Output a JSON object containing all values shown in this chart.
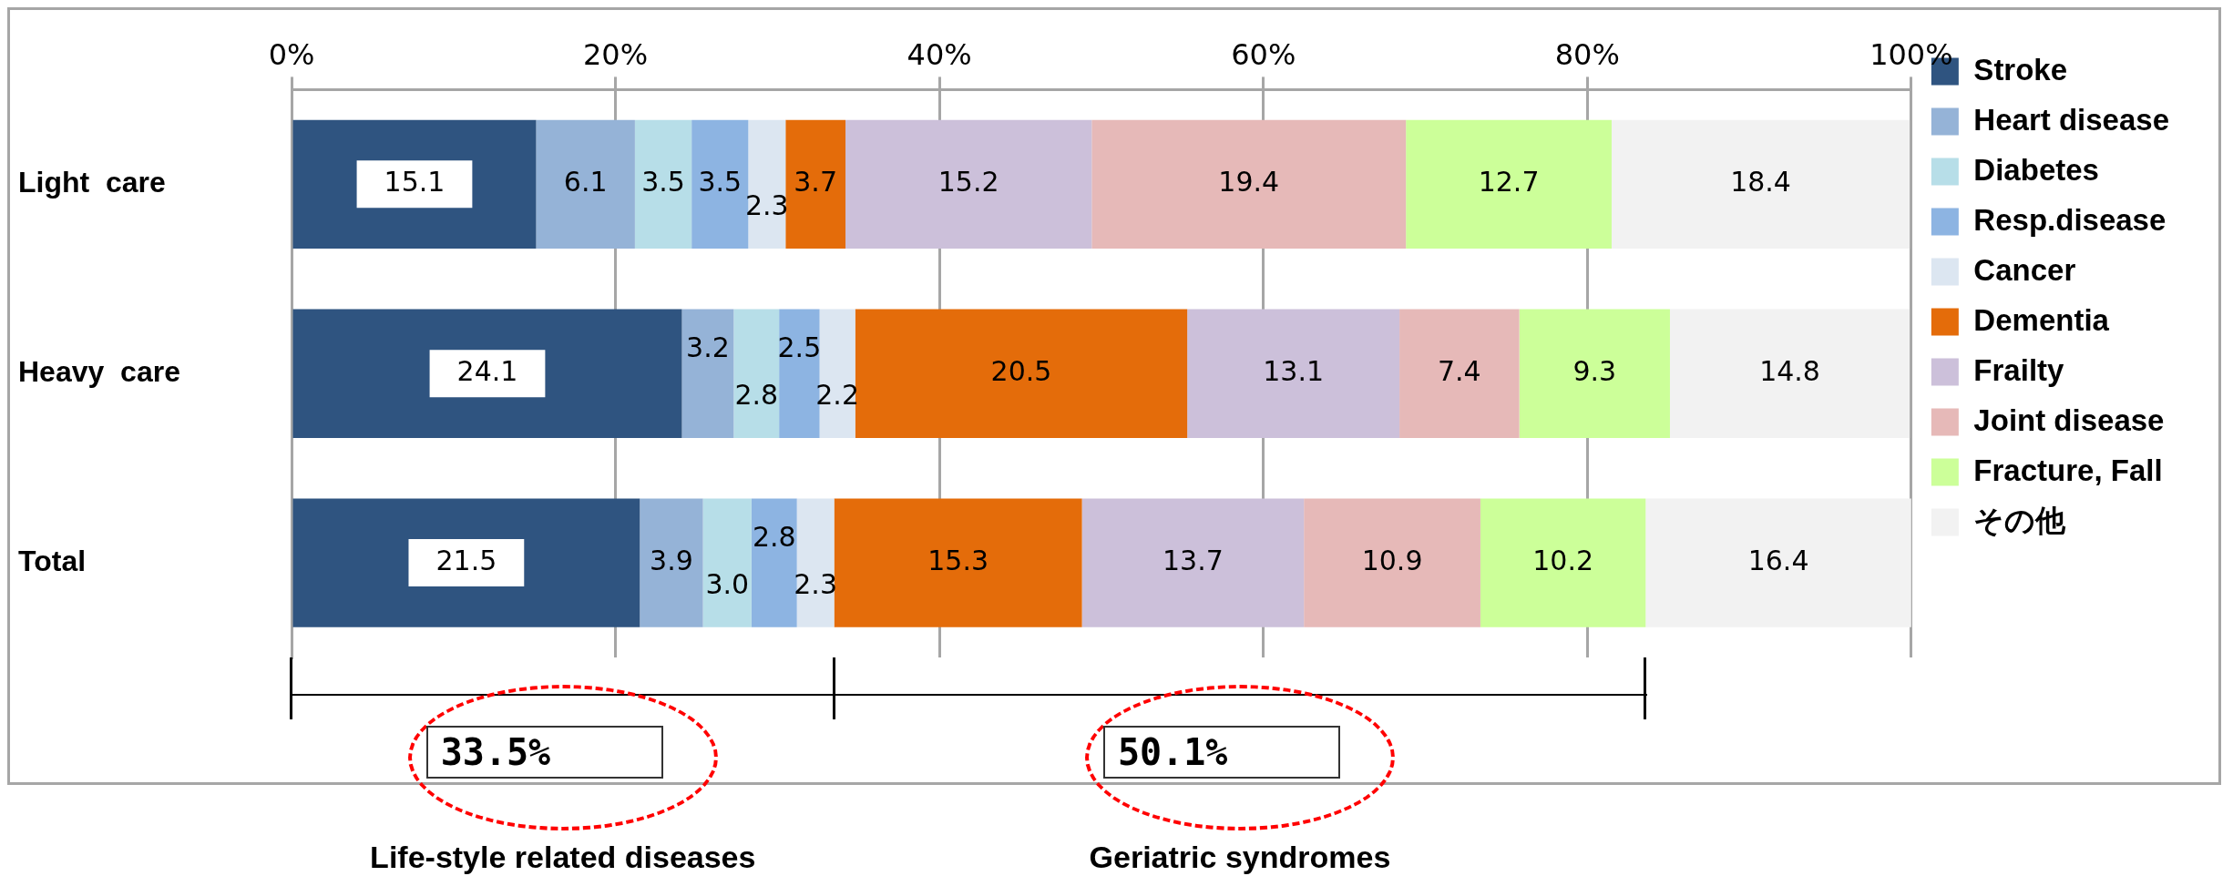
{
  "chart_data": {
    "type": "bar",
    "orientation": "horizontal",
    "stacked": true,
    "categories": [
      "Light  care",
      "Heavy  care",
      "Total"
    ],
    "series": [
      {
        "name": "Stroke",
        "color": "#2f5480",
        "values": [
          15.1,
          24.1,
          21.5
        ]
      },
      {
        "name": "Heart disease",
        "color": "#95b3d7",
        "values": [
          6.1,
          3.2,
          3.9
        ]
      },
      {
        "name": "Diabetes",
        "color": "#b7dee8",
        "values": [
          3.5,
          2.8,
          3.0
        ],
        "value_labels": [
          "3.5",
          "2.8",
          "3.0"
        ]
      },
      {
        "name": "Resp.disease",
        "color": "#8db4e2",
        "values": [
          3.5,
          2.5,
          2.8
        ]
      },
      {
        "name": "Cancer",
        "color": "#dce6f1",
        "values": [
          2.3,
          2.2,
          2.3
        ]
      },
      {
        "name": "Dementia",
        "color": "#e46c0a",
        "values": [
          3.7,
          20.5,
          15.3
        ]
      },
      {
        "name": "Frailty",
        "color": "#ccc0da",
        "values": [
          15.2,
          13.1,
          13.7
        ]
      },
      {
        "name": "Joint disease",
        "color": "#e6b9b8",
        "values": [
          19.4,
          7.4,
          10.9
        ]
      },
      {
        "name": "Fracture, Fall",
        "color": "#ccff99",
        "values": [
          12.7,
          9.3,
          10.2
        ]
      },
      {
        "name": "その他",
        "color": "#f2f2f2",
        "values": [
          18.4,
          14.8,
          16.4
        ]
      }
    ],
    "xlim": [
      0,
      100
    ],
    "xticks": [
      {
        "value": 0,
        "label": "0%"
      },
      {
        "value": 20,
        "label": "20%"
      },
      {
        "value": 40,
        "label": "40%"
      },
      {
        "value": 60,
        "label": "60%"
      },
      {
        "value": 80,
        "label": "80%"
      },
      {
        "value": 100,
        "label": "100%"
      }
    ],
    "grid": "x",
    "legend": "right",
    "data_labels": true,
    "annotations": [
      "33.5%",
      "50.1%",
      "Life-style related diseases",
      "Geriatric syndromes"
    ]
  }
}
